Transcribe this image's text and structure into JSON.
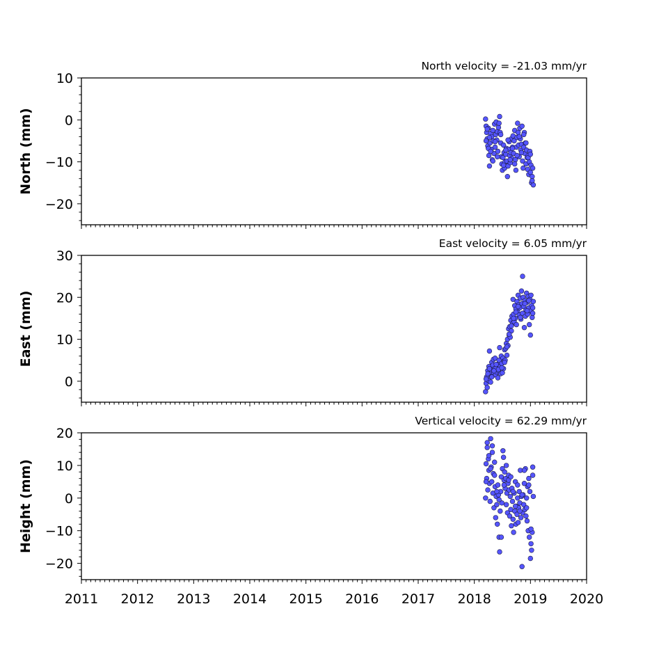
{
  "chart_data": [
    {
      "type": "scatter",
      "title": "North velocity = -21.03 mm/yr",
      "xlabel": "",
      "ylabel": "North (mm)",
      "ylim": [
        -25,
        10
      ],
      "yticks": [
        10,
        0,
        -10,
        -20
      ],
      "xlim": [
        2011,
        2020
      ],
      "xticks": [
        2011,
        2012,
        2013,
        2014,
        2015,
        2016,
        2017,
        2018,
        2019,
        2020
      ],
      "show_xtick_labels": false,
      "grid": false,
      "marker_color": "#5555ff",
      "series": [
        {
          "x": [
            2018.2,
            2018.21,
            2018.22,
            2018.23,
            2018.24,
            2018.25,
            2018.26,
            2018.27,
            2018.28,
            2018.29,
            2018.3,
            2018.31,
            2018.32,
            2018.33,
            2018.34,
            2018.35,
            2018.36,
            2018.37,
            2018.38,
            2018.39,
            2018.4,
            2018.41,
            2018.42,
            2018.43,
            2018.44,
            2018.45,
            2018.46,
            2018.47,
            2018.48,
            2018.49,
            2018.5,
            2018.51,
            2018.52,
            2018.53,
            2018.54,
            2018.55,
            2018.56,
            2018.57,
            2018.58,
            2018.59,
            2018.6,
            2018.61,
            2018.62,
            2018.63,
            2018.64,
            2018.65,
            2018.66,
            2018.67,
            2018.68,
            2018.69,
            2018.7,
            2018.71,
            2018.72,
            2018.73,
            2018.74,
            2018.75,
            2018.76,
            2018.77,
            2018.78,
            2018.79,
            2018.8,
            2018.81,
            2018.82,
            2018.83,
            2018.84,
            2018.85,
            2018.86,
            2018.87,
            2018.88,
            2018.89,
            2018.9,
            2018.91,
            2018.92,
            2018.93,
            2018.94,
            2018.95,
            2018.96,
            2018.97,
            2018.98,
            2018.99,
            2019.0,
            2019.01,
            2019.02,
            2019.03,
            2019.04,
            2019.05,
            2018.21,
            2018.23,
            2018.25,
            2018.27,
            2018.29,
            2018.33,
            2018.37,
            2018.41,
            2018.47,
            2018.52,
            2018.56,
            2018.6,
            2018.64,
            2018.68,
            2018.72,
            2018.76,
            2018.8,
            2018.84,
            2018.88,
            2018.92,
            2018.96,
            2019.0,
            2019.03
          ],
          "y": [
            0.2,
            -1.5,
            -3.0,
            -4.5,
            -6.2,
            -2.0,
            -8.5,
            -11.0,
            -5.5,
            -3.2,
            -7.0,
            -4.0,
            -9.5,
            -2.5,
            -5.0,
            -8.0,
            -1.0,
            -6.5,
            -3.5,
            -0.5,
            -4.8,
            -2.8,
            -7.5,
            -1.8,
            -0.8,
            0.8,
            -3.0,
            -5.5,
            -8.8,
            -10.5,
            -12.0,
            -9.0,
            -6.0,
            -7.8,
            -11.5,
            -10.0,
            -8.2,
            -6.8,
            -9.8,
            -13.5,
            -11.0,
            -7.0,
            -5.2,
            -8.5,
            -10.2,
            -7.8,
            -4.5,
            -9.2,
            -6.5,
            -3.8,
            -8.0,
            -5.0,
            -2.5,
            -9.5,
            -12.0,
            -6.5,
            -4.2,
            -0.8,
            -3.0,
            -6.0,
            -8.8,
            -2.0,
            -4.5,
            -7.2,
            -5.8,
            -1.5,
            -9.8,
            -11.5,
            -6.5,
            -3.0,
            -8.0,
            -5.5,
            -10.5,
            -7.2,
            -9.0,
            -11.8,
            -8.5,
            -13.0,
            -10.0,
            -7.5,
            -12.5,
            -10.8,
            -15.0,
            -13.5,
            -11.5,
            -15.5,
            -5.0,
            -2.2,
            -6.8,
            -4.2,
            -7.5,
            -9.8,
            -5.2,
            -8.8,
            -3.5,
            -10.8,
            -7.2,
            -4.8,
            -9.5,
            -6.8,
            -10.5,
            -8.5,
            -4.0,
            -7.8,
            -3.5,
            -5.5,
            -9.0,
            -8.2,
            -14.5
          ]
        }
      ]
    },
    {
      "type": "scatter",
      "title": "East velocity = 6.05 mm/yr",
      "xlabel": "",
      "ylabel": "East (mm)",
      "ylim": [
        -5,
        30
      ],
      "yticks": [
        30,
        20,
        10,
        0
      ],
      "xlim": [
        2011,
        2020
      ],
      "xticks": [
        2011,
        2012,
        2013,
        2014,
        2015,
        2016,
        2017,
        2018,
        2019,
        2020
      ],
      "show_xtick_labels": false,
      "grid": false,
      "marker_color": "#5555ff",
      "series": [
        {
          "x": [
            2018.2,
            2018.21,
            2018.22,
            2018.23,
            2018.24,
            2018.25,
            2018.26,
            2018.27,
            2018.28,
            2018.29,
            2018.3,
            2018.31,
            2018.32,
            2018.33,
            2018.34,
            2018.35,
            2018.36,
            2018.37,
            2018.38,
            2018.39,
            2018.4,
            2018.41,
            2018.42,
            2018.43,
            2018.44,
            2018.45,
            2018.46,
            2018.47,
            2018.48,
            2018.49,
            2018.5,
            2018.51,
            2018.52,
            2018.53,
            2018.54,
            2018.55,
            2018.56,
            2018.57,
            2018.58,
            2018.59,
            2018.6,
            2018.61,
            2018.62,
            2018.63,
            2018.64,
            2018.65,
            2018.66,
            2018.67,
            2018.68,
            2018.69,
            2018.7,
            2018.71,
            2018.72,
            2018.73,
            2018.74,
            2018.75,
            2018.76,
            2018.77,
            2018.78,
            2018.79,
            2018.8,
            2018.81,
            2018.82,
            2018.83,
            2018.84,
            2018.85,
            2018.86,
            2018.87,
            2018.88,
            2018.89,
            2018.9,
            2018.91,
            2018.92,
            2018.93,
            2018.94,
            2018.95,
            2018.96,
            2018.97,
            2018.98,
            2018.99,
            2019.0,
            2019.01,
            2019.02,
            2019.03,
            2019.04,
            2019.05,
            2018.21,
            2018.24,
            2018.27,
            2018.31,
            2018.35,
            2018.39,
            2018.43,
            2018.49,
            2018.54,
            2018.58,
            2018.62,
            2018.66,
            2018.7,
            2018.74,
            2018.78,
            2018.82,
            2018.86,
            2018.9,
            2018.94,
            2018.97,
            2019.01,
            2019.04
          ],
          "y": [
            -2.5,
            -0.5,
            1.0,
            -1.5,
            2.5,
            0.2,
            3.5,
            7.2,
            1.8,
            -0.2,
            2.8,
            4.5,
            1.2,
            3.8,
            5.2,
            2.0,
            3.0,
            5.5,
            1.5,
            3.2,
            2.2,
            4.0,
            0.8,
            2.5,
            5.0,
            8.0,
            3.5,
            1.8,
            6.0,
            4.2,
            2.0,
            5.5,
            3.0,
            4.8,
            7.5,
            5.0,
            7.8,
            9.0,
            6.2,
            10.0,
            8.5,
            12.5,
            11.0,
            13.0,
            10.5,
            14.5,
            12.0,
            15.5,
            13.8,
            19.5,
            16.0,
            14.2,
            18.0,
            15.0,
            17.2,
            13.5,
            19.0,
            16.5,
            20.5,
            18.2,
            15.8,
            17.5,
            19.8,
            14.8,
            21.5,
            18.5,
            16.2,
            20.0,
            17.8,
            12.8,
            19.2,
            15.5,
            17.0,
            21.0,
            18.8,
            16.0,
            20.2,
            17.5,
            13.5,
            19.5,
            11.0,
            16.8,
            18.0,
            15.2,
            17.5,
            19.0,
            0.5,
            1.8,
            3.0,
            1.0,
            2.5,
            4.0,
            2.8,
            3.2,
            4.5,
            8.2,
            11.2,
            13.2,
            15.0,
            16.5,
            17.8,
            15.2,
            25.0,
            18.5,
            16.8,
            19.2,
            20.5,
            16.2
          ]
        }
      ]
    },
    {
      "type": "scatter",
      "title": "Vertical velocity = 62.29 mm/yr",
      "xlabel": "",
      "ylabel": "Height (mm)",
      "ylim": [
        -25,
        20
      ],
      "yticks": [
        20,
        10,
        0,
        -10,
        -20
      ],
      "xlim": [
        2011,
        2020
      ],
      "xticks": [
        2011,
        2012,
        2013,
        2014,
        2015,
        2016,
        2017,
        2018,
        2019,
        2020
      ],
      "xtick_labels": [
        "2011",
        "2012",
        "2013",
        "2014",
        "2015",
        "2016",
        "2017",
        "2018",
        "2019",
        "2020"
      ],
      "show_xtick_labels": true,
      "grid": false,
      "marker_color": "#5555ff",
      "series": [
        {
          "x": [
            2018.2,
            2018.21,
            2018.22,
            2018.23,
            2018.24,
            2018.25,
            2018.26,
            2018.27,
            2018.28,
            2018.29,
            2018.3,
            2018.31,
            2018.32,
            2018.33,
            2018.34,
            2018.35,
            2018.36,
            2018.37,
            2018.38,
            2018.39,
            2018.4,
            2018.41,
            2018.42,
            2018.43,
            2018.44,
            2018.45,
            2018.46,
            2018.47,
            2018.48,
            2018.49,
            2018.5,
            2018.51,
            2018.52,
            2018.53,
            2018.54,
            2018.55,
            2018.56,
            2018.57,
            2018.58,
            2018.59,
            2018.6,
            2018.61,
            2018.62,
            2018.63,
            2018.64,
            2018.65,
            2018.66,
            2018.67,
            2018.68,
            2018.69,
            2018.7,
            2018.71,
            2018.72,
            2018.73,
            2018.74,
            2018.75,
            2018.76,
            2018.77,
            2018.78,
            2018.79,
            2018.8,
            2018.81,
            2018.82,
            2018.83,
            2018.84,
            2018.85,
            2018.86,
            2018.87,
            2018.88,
            2018.89,
            2018.9,
            2018.91,
            2018.92,
            2018.93,
            2018.94,
            2018.95,
            2018.96,
            2018.97,
            2018.98,
            2018.99,
            2019.0,
            2019.01,
            2019.02,
            2019.03,
            2019.04,
            2019.05,
            2018.21,
            2018.23,
            2018.26,
            2018.29,
            2018.32,
            2018.36,
            2018.4,
            2018.44,
            2018.48,
            2018.53,
            2018.57,
            2018.61,
            2018.65,
            2018.69,
            2018.73,
            2018.77,
            2018.81,
            2018.85,
            2018.89,
            2018.93,
            2018.97,
            2019.01,
            2019.04
          ],
          "y": [
            0.0,
            10.5,
            6.0,
            17.0,
            2.5,
            12.0,
            8.5,
            4.5,
            -1.0,
            18.2,
            9.5,
            5.0,
            14.0,
            1.5,
            7.5,
            -3.0,
            11.0,
            3.5,
            -6.0,
            0.5,
            -2.0,
            -8.0,
            4.0,
            1.0,
            -12.0,
            -16.5,
            -4.0,
            2.0,
            6.5,
            -1.5,
            9.0,
            14.5,
            12.5,
            5.5,
            8.0,
            3.0,
            6.0,
            -2.0,
            1.5,
            -4.5,
            4.5,
            7.0,
            2.5,
            -5.5,
            0.5,
            -3.5,
            -8.5,
            3.0,
            -1.0,
            -6.5,
            -10.5,
            1.5,
            -4.0,
            5.0,
            -8.0,
            -2.5,
            -5.0,
            0.0,
            -7.5,
            -3.0,
            2.0,
            -1.5,
            8.5,
            -6.0,
            0.5,
            -21.0,
            -4.5,
            1.0,
            -2.0,
            4.5,
            -3.5,
            9.0,
            -5.5,
            0.0,
            -7.0,
            3.5,
            -10.0,
            6.0,
            -12.0,
            2.0,
            -18.5,
            -14.0,
            -16.0,
            -10.5,
            7.0,
            0.5,
            5.0,
            15.5,
            13.0,
            9.0,
            16.0,
            7.0,
            2.0,
            -0.5,
            -12.0,
            4.0,
            10.0,
            5.5,
            6.5,
            2.0,
            -2.5,
            4.0,
            -4.0,
            1.0,
            8.5,
            -3.0,
            4.0,
            -9.5,
            9.5
          ]
        }
      ]
    }
  ]
}
